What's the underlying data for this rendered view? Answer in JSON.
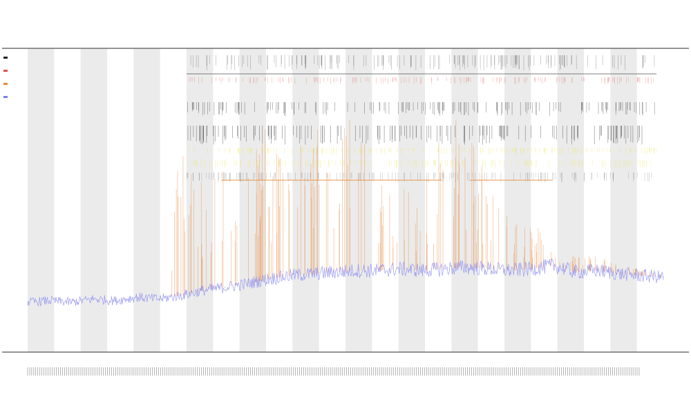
{
  "chart_data": {
    "type": "line",
    "title": "",
    "subtitles": [],
    "xlabel": "",
    "ylabel": "",
    "grid": false,
    "legend": "top-left",
    "colors": {
      "band": "#ebebeb",
      "main_series": "#7c7cf0",
      "spike_series": "#e8883a",
      "ribbon_yellow": "#e8e85a",
      "ribbon_black": "#222222",
      "ribbon_red": "#e05050",
      "axis": "#555555"
    },
    "series": [
      {
        "values": [
          0.08,
          0.09,
          0.08,
          0.1,
          0.09,
          0.11,
          0.1,
          0.12,
          0.15,
          0.17,
          0.19,
          0.22,
          0.24,
          0.25,
          0.26,
          0.27,
          0.27,
          0.28,
          0.27,
          0.28,
          0.29,
          0.28,
          0.27,
          0.28,
          0.3,
          0.26,
          0.27,
          0.25,
          0.24,
          0.23
        ]
      },
      {
        "values": [
          0,
          0,
          0,
          0,
          0,
          0,
          0,
          0.55,
          0.35,
          0.4,
          0.55,
          0.5,
          0.45,
          0.5,
          0.42,
          0.55,
          0.35,
          0.3,
          0.25,
          0.55,
          0.48,
          0.3,
          0.2,
          0.15,
          0.1,
          0.05,
          0.05,
          0.03,
          0.02,
          0.02
        ]
      }
    ]
  }
}
